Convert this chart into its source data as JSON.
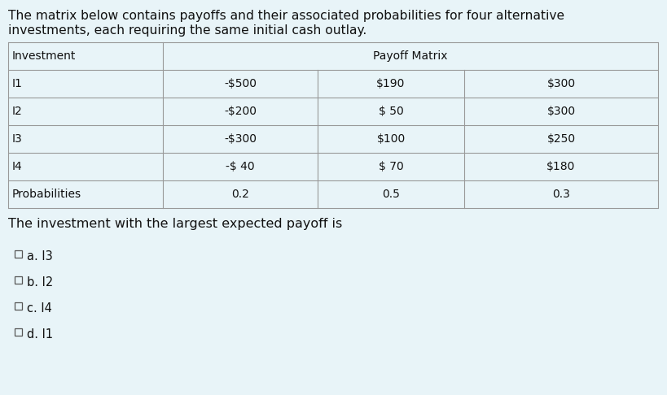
{
  "background_color": "#e8f4f8",
  "intro_text_line1": "The matrix below contains payoffs and their associated probabilities for four alternative",
  "intro_text_line2": "investments, each requiring the same initial cash outlay.",
  "rows": [
    [
      "I1",
      "-$500",
      "$190",
      "$300"
    ],
    [
      "I2",
      "-$200",
      "$ 50",
      "$300"
    ],
    [
      "I3",
      "-$300",
      "$100",
      "$250"
    ],
    [
      "I4",
      "-$ 40",
      "$ 70",
      "$180"
    ],
    [
      "Probabilities",
      "0.2",
      "0.5",
      "0.3"
    ]
  ],
  "question_text": "The investment with the largest expected payoff is",
  "options": [
    "a. I3",
    "b. I2",
    "c. I4",
    "d. I1"
  ],
  "intro_fontsize": 11.2,
  "table_fontsize": 10.0,
  "question_fontsize": 11.5,
  "option_fontsize": 10.5,
  "text_color": "#111111",
  "table_line_color": "#999999"
}
